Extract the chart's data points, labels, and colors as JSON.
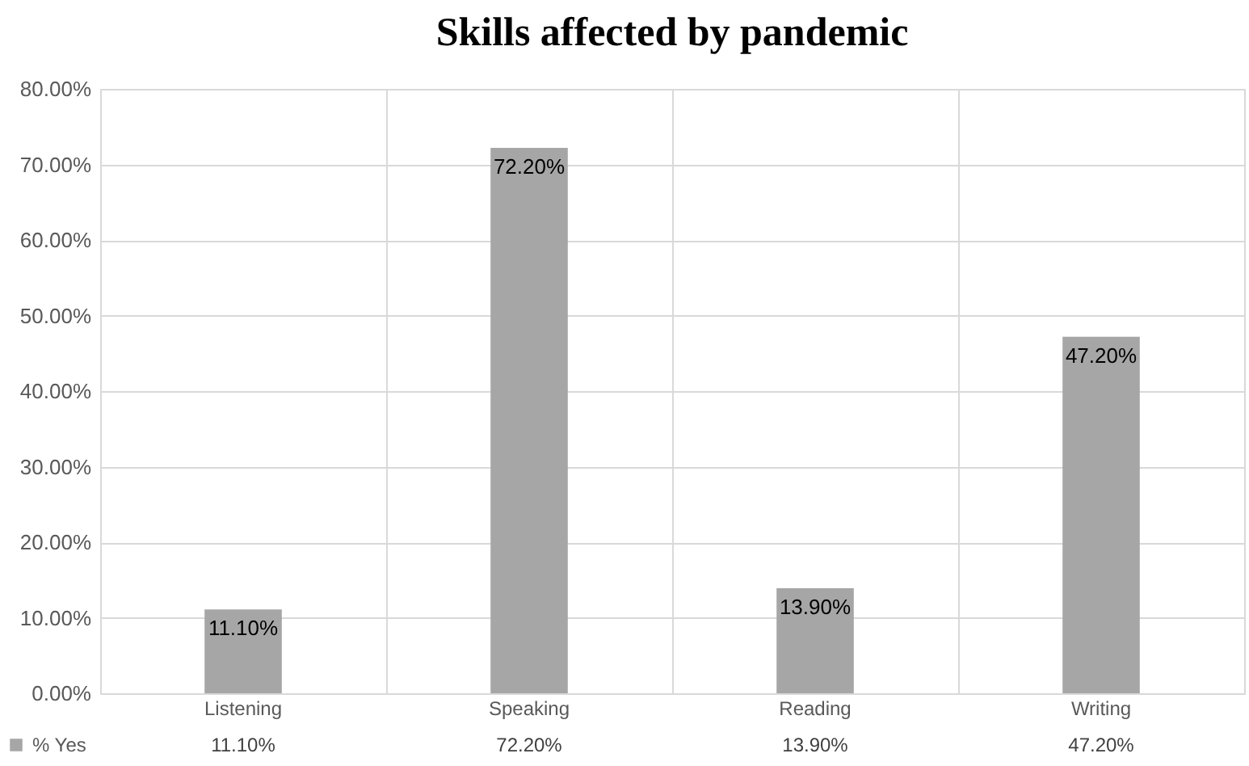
{
  "chart_data": {
    "type": "bar",
    "title": "Skills affected by pandemic",
    "categories": [
      "Listening",
      "Speaking",
      "Reading",
      "Writing"
    ],
    "series": [
      {
        "name": "% Yes",
        "color": "#a6a6a6",
        "values": [
          11.1,
          72.2,
          13.9,
          47.2
        ],
        "value_labels": [
          "11.10%",
          "72.20%",
          "13.90%",
          "47.20%"
        ]
      }
    ],
    "ylim": [
      0,
      80
    ],
    "yticks": [
      {
        "value": 0,
        "label": "0.00%"
      },
      {
        "value": 10,
        "label": "10.00%"
      },
      {
        "value": 20,
        "label": "20.00%"
      },
      {
        "value": 30,
        "label": "30.00%"
      },
      {
        "value": 40,
        "label": "40.00%"
      },
      {
        "value": 50,
        "label": "50.00%"
      },
      {
        "value": 60,
        "label": "60.00%"
      },
      {
        "value": 70,
        "label": "70.00%"
      },
      {
        "value": 80,
        "label": "80.00%"
      }
    ],
    "grid": true,
    "legend": "bottom left"
  }
}
